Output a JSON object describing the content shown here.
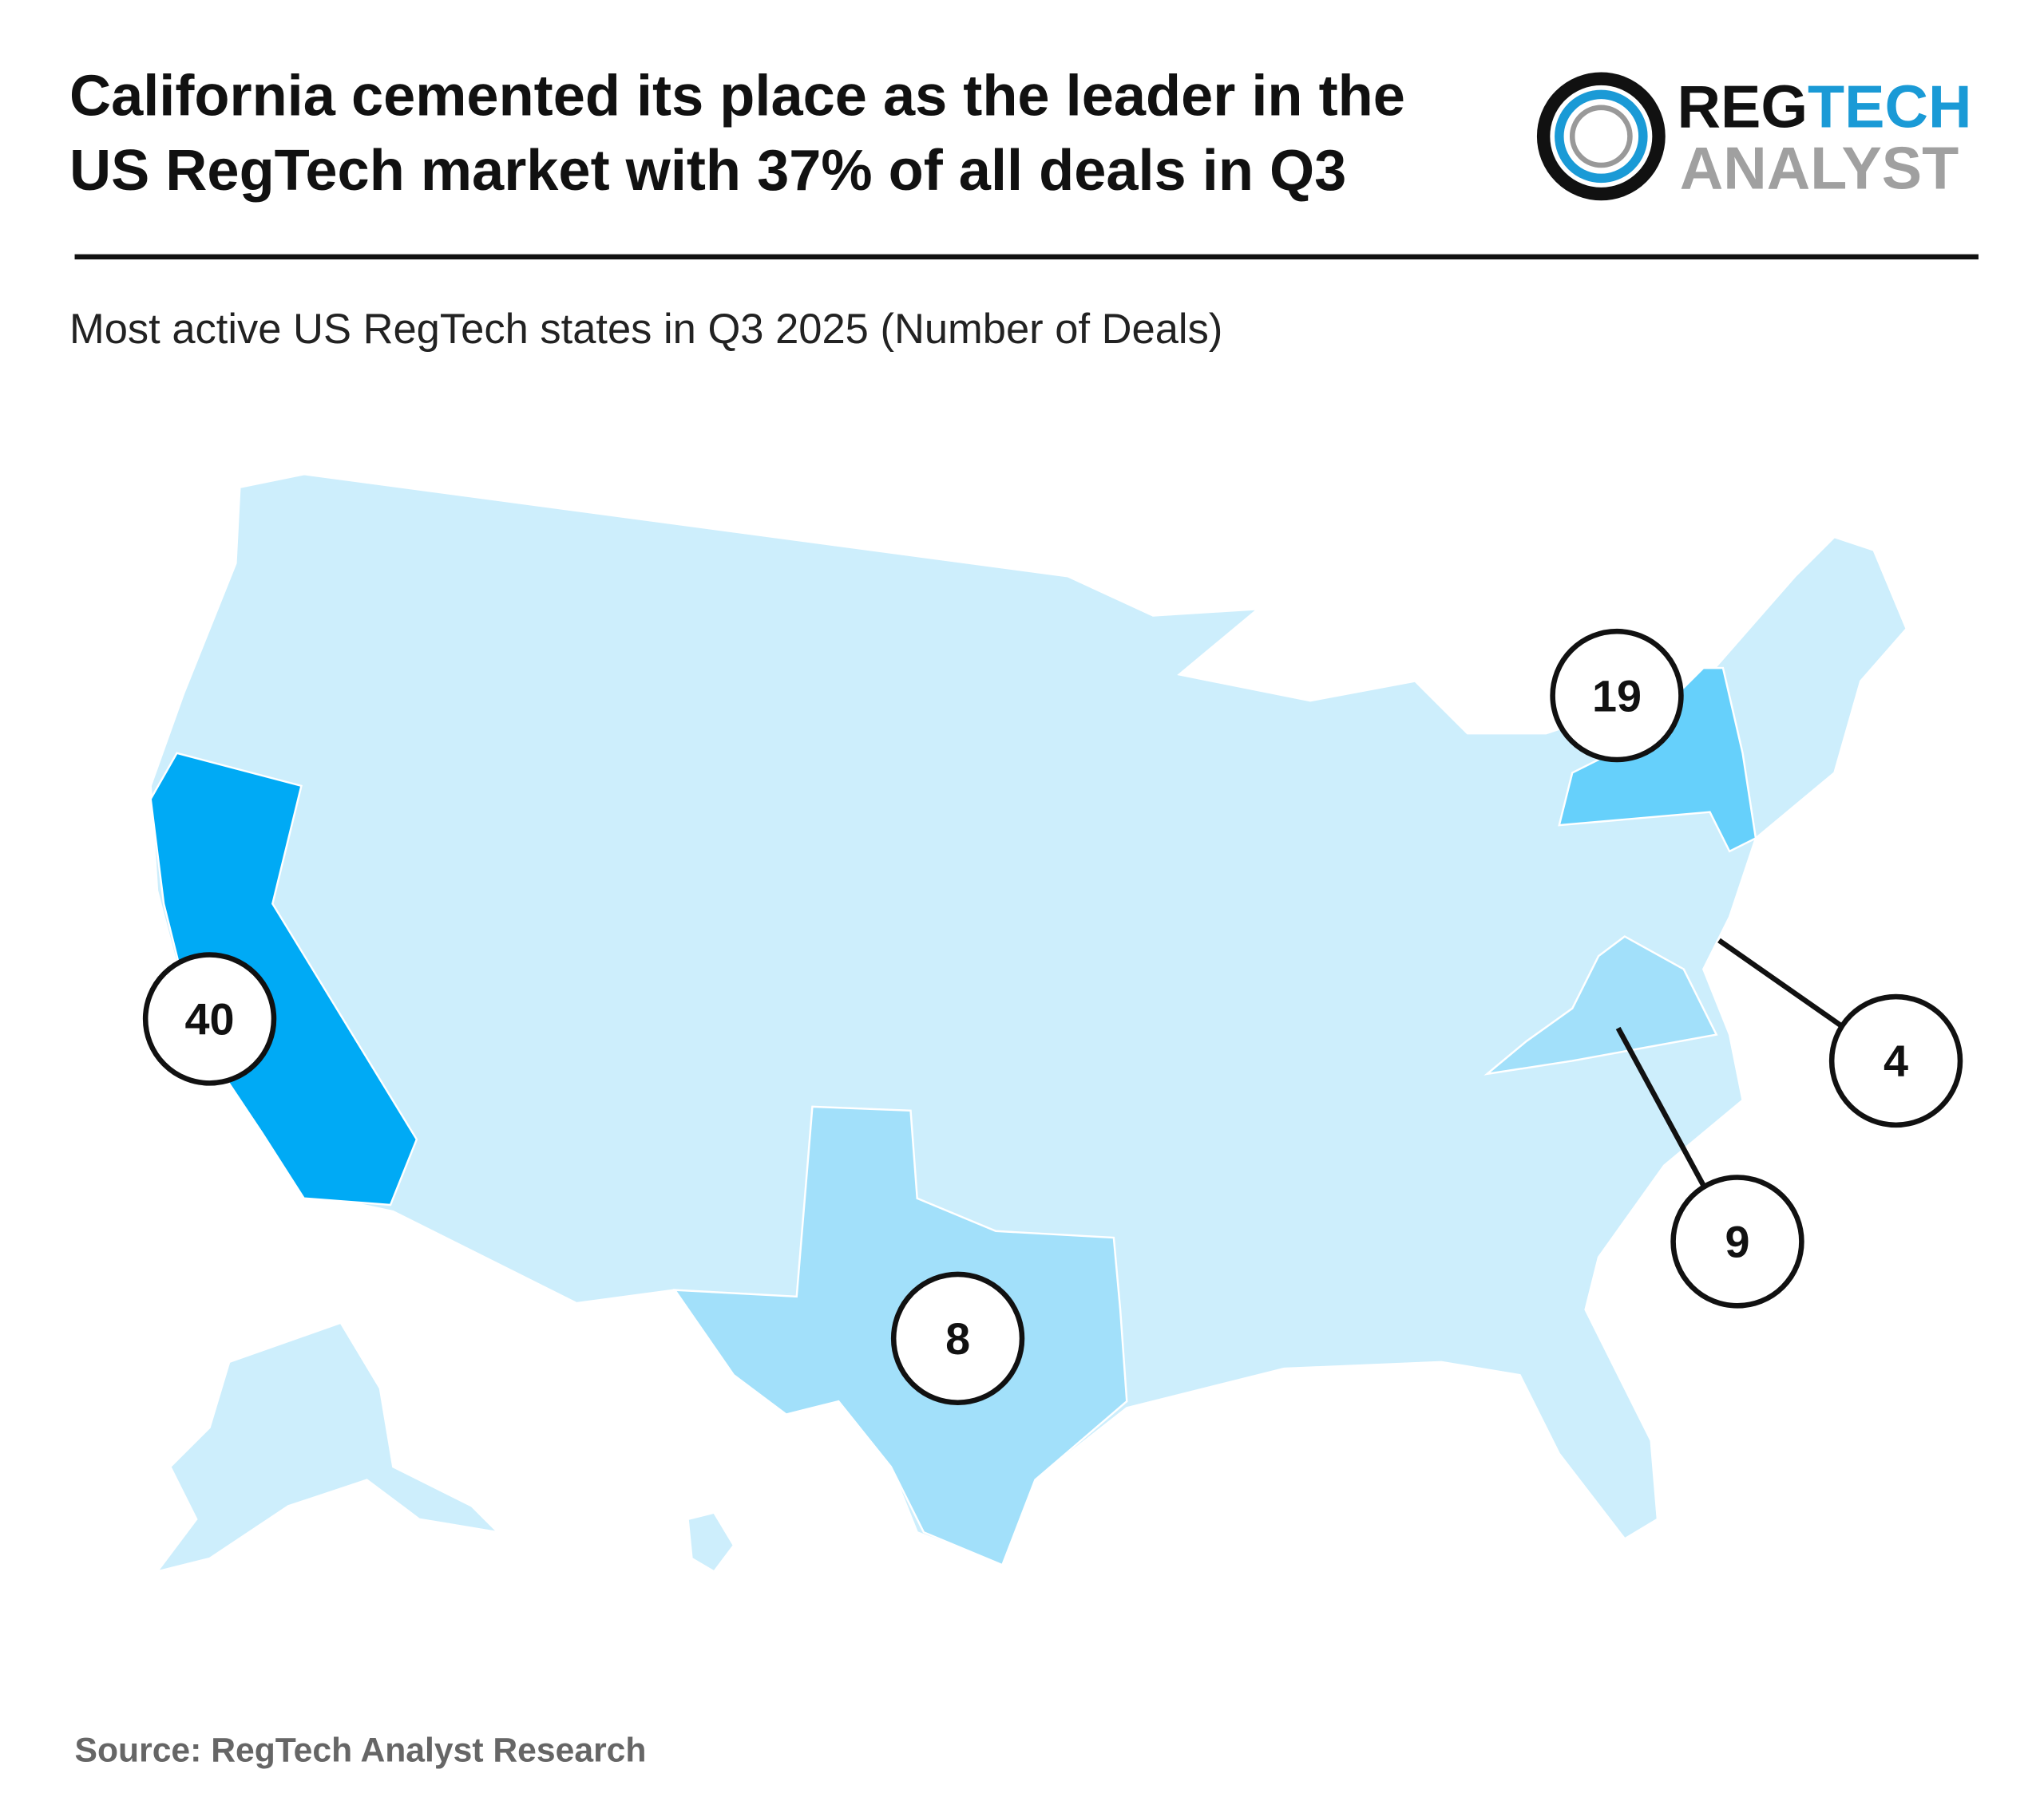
{
  "header": {
    "title": [
      "California cemented its place as the leader in the",
      "US RegTech market with 37% of all deals in Q3"
    ],
    "logo": {
      "part1": "REG",
      "part2": "TECH",
      "part3": "ANALYST"
    }
  },
  "chart_data": {
    "type": "map",
    "subtitle": "Most active US RegTech states in Q3 2025 (Number of Deals)",
    "base_color": "#cdeefc",
    "bubbles": [
      {
        "value": 40,
        "color": "#00aaf5"
      },
      {
        "value": 19,
        "color": "#66d0fb"
      },
      {
        "value": 4,
        "color": "#cdeefc"
      },
      {
        "value": 9,
        "color": "#a2e0fa"
      },
      {
        "value": 8,
        "color": "#a2e0fa"
      }
    ]
  },
  "footer": {
    "source": "Source: RegTech Analyst Research"
  }
}
